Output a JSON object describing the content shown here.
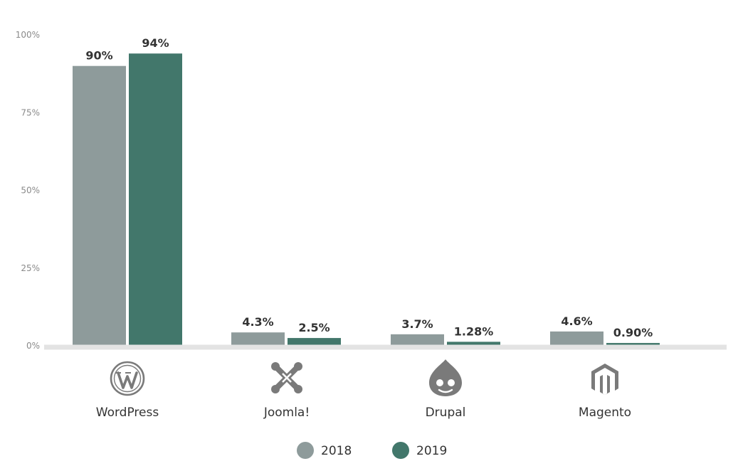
{
  "chart_data": {
    "type": "bar",
    "categories": [
      "WordPress",
      "Joomla!",
      "Drupal",
      "Magento"
    ],
    "category_icons": [
      "wordpress-icon",
      "joomla-icon",
      "drupal-icon",
      "magento-icon"
    ],
    "series": [
      {
        "name": "2018",
        "color": "#8e9b9b",
        "values": [
          90,
          4.3,
          3.7,
          4.6
        ],
        "labels": [
          "90%",
          "4.3%",
          "3.7%",
          "4.6%"
        ]
      },
      {
        "name": "2019",
        "color": "#42776b",
        "values": [
          94,
          2.5,
          1.28,
          0.9
        ],
        "labels": [
          "94%",
          "2.5%",
          "1.28%",
          "0.90%"
        ]
      }
    ],
    "yticks": [
      0,
      25,
      50,
      75,
      100
    ],
    "ytick_labels": [
      "0%",
      "25%",
      "50%",
      "75%",
      "100%"
    ],
    "ylim": [
      0,
      100
    ],
    "grid": false,
    "legend": "bottom-center",
    "title": "",
    "xlabel": "",
    "ylabel": ""
  }
}
